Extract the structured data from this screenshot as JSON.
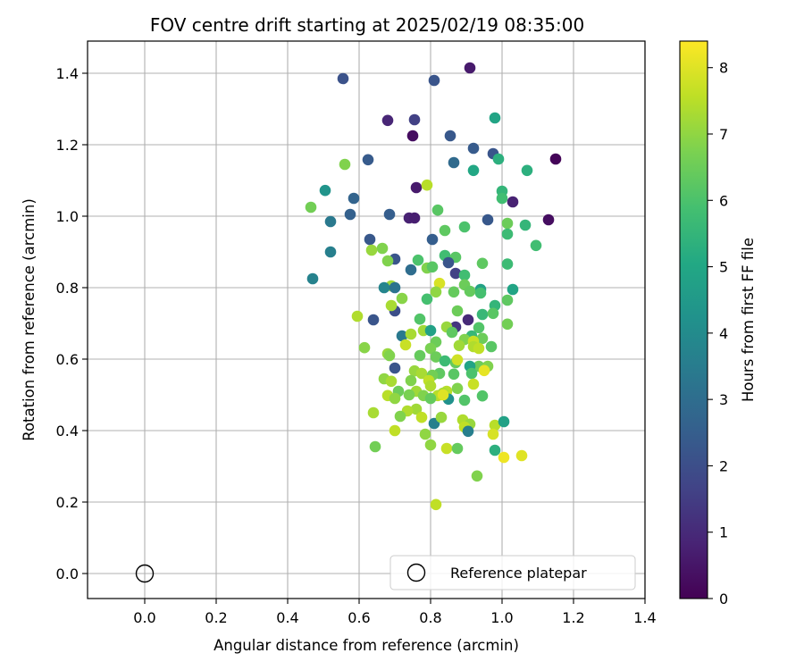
{
  "chart_data": {
    "type": "scatter",
    "title": "FOV centre drift starting at 2025/02/19 08:35:00",
    "xlabel": "Angular distance from reference (arcmin)",
    "ylabel": "Rotation from reference (arcmin)",
    "xlim": [
      -0.16,
      1.4
    ],
    "ylim": [
      -0.07,
      1.49
    ],
    "xticks": [
      "0.0",
      "0.2",
      "0.4",
      "0.6",
      "0.8",
      "1.0",
      "1.2",
      "1.4"
    ],
    "yticks": [
      "0.0",
      "0.2",
      "0.4",
      "0.6",
      "0.8",
      "1.0",
      "1.2",
      "1.4"
    ],
    "grid": true,
    "colormap": "viridis",
    "colorbar": {
      "label": "Hours from first FF file",
      "range": [
        0,
        8.4
      ],
      "ticks": [
        "0",
        "1",
        "2",
        "3",
        "4",
        "5",
        "6",
        "7",
        "8"
      ]
    },
    "legend": {
      "placement": "lower-right",
      "entries": [
        {
          "label": "Reference platepar",
          "marker": "open-circle",
          "x": 0.0,
          "y": 0.0
        }
      ]
    },
    "points": [
      [
        0.91,
        1.415,
        0.6
      ],
      [
        0.555,
        1.385,
        2.1
      ],
      [
        0.81,
        1.38,
        2.2
      ],
      [
        0.68,
        1.268,
        0.9
      ],
      [
        0.755,
        1.27,
        1.6
      ],
      [
        0.98,
        1.275,
        4.9
      ],
      [
        0.75,
        1.225,
        0.3
      ],
      [
        0.855,
        1.225,
        2.3
      ],
      [
        0.92,
        1.19,
        2.4
      ],
      [
        0.975,
        1.175,
        2.2
      ],
      [
        0.625,
        1.158,
        2.4
      ],
      [
        1.15,
        1.16,
        0.1
      ],
      [
        0.865,
        1.15,
        2.9
      ],
      [
        0.99,
        1.16,
        5.3
      ],
      [
        0.56,
        1.145,
        6.8
      ],
      [
        0.92,
        1.128,
        5.0
      ],
      [
        1.07,
        1.128,
        5.3
      ],
      [
        0.76,
        1.08,
        0.6
      ],
      [
        0.79,
        1.087,
        7.5
      ],
      [
        0.505,
        1.072,
        4.3
      ],
      [
        1.0,
        1.07,
        5.5
      ],
      [
        0.585,
        1.05,
        2.7
      ],
      [
        1.03,
        1.04,
        0.8
      ],
      [
        1.0,
        1.05,
        5.8
      ],
      [
        0.465,
        1.025,
        6.6
      ],
      [
        0.82,
        1.017,
        6.2
      ],
      [
        0.575,
        1.005,
        2.6
      ],
      [
        0.685,
        1.005,
        2.5
      ],
      [
        0.74,
        0.995,
        0.8
      ],
      [
        0.755,
        0.995,
        0.7
      ],
      [
        0.96,
        0.99,
        2.3
      ],
      [
        1.13,
        0.99,
        0.3
      ],
      [
        0.52,
        0.985,
        3.4
      ],
      [
        1.015,
        0.98,
        6.5
      ],
      [
        1.065,
        0.975,
        5.5
      ],
      [
        0.895,
        0.97,
        6.0
      ],
      [
        0.84,
        0.96,
        6.3
      ],
      [
        1.015,
        0.95,
        5.7
      ],
      [
        0.63,
        0.935,
        2.3
      ],
      [
        0.805,
        0.935,
        2.5
      ],
      [
        1.095,
        0.918,
        5.8
      ],
      [
        0.665,
        0.91,
        6.8
      ],
      [
        0.635,
        0.905,
        7.1
      ],
      [
        0.52,
        0.9,
        3.6
      ],
      [
        0.84,
        0.89,
        5.8
      ],
      [
        0.87,
        0.885,
        6.2
      ],
      [
        0.7,
        0.88,
        2.2
      ],
      [
        0.68,
        0.875,
        6.8
      ],
      [
        0.765,
        0.877,
        6.0
      ],
      [
        0.85,
        0.87,
        2.2
      ],
      [
        0.945,
        0.868,
        6.3
      ],
      [
        1.015,
        0.866,
        5.7
      ],
      [
        0.745,
        0.85,
        3.0
      ],
      [
        0.79,
        0.855,
        6.8
      ],
      [
        0.805,
        0.858,
        6.2
      ],
      [
        0.87,
        0.84,
        1.6
      ],
      [
        0.895,
        0.835,
        5.8
      ],
      [
        0.47,
        0.825,
        3.7
      ],
      [
        0.825,
        0.812,
        7.9
      ],
      [
        0.69,
        0.805,
        7.2
      ],
      [
        0.67,
        0.8,
        3.8
      ],
      [
        0.7,
        0.8,
        3.2
      ],
      [
        0.895,
        0.808,
        6.5
      ],
      [
        1.03,
        0.795,
        4.9
      ],
      [
        0.94,
        0.795,
        4.8
      ],
      [
        0.865,
        0.788,
        6.4
      ],
      [
        0.815,
        0.788,
        7.0
      ],
      [
        0.91,
        0.79,
        6.4
      ],
      [
        0.94,
        0.785,
        5.9
      ],
      [
        0.72,
        0.77,
        6.9
      ],
      [
        0.79,
        0.768,
        5.9
      ],
      [
        1.015,
        0.765,
        6.3
      ],
      [
        0.98,
        0.75,
        5.5
      ],
      [
        0.7,
        0.735,
        2.0
      ],
      [
        0.69,
        0.75,
        7.3
      ],
      [
        0.595,
        0.72,
        7.4
      ],
      [
        0.875,
        0.735,
        6.5
      ],
      [
        0.945,
        0.725,
        5.6
      ],
      [
        0.975,
        0.728,
        6.2
      ],
      [
        0.64,
        0.71,
        2.2
      ],
      [
        0.905,
        0.71,
        1.0
      ],
      [
        0.77,
        0.712,
        6.1
      ],
      [
        0.87,
        0.69,
        1.3
      ],
      [
        1.015,
        0.698,
        6.6
      ],
      [
        0.935,
        0.688,
        6.1
      ],
      [
        0.845,
        0.69,
        7.1
      ],
      [
        0.78,
        0.68,
        7.2
      ],
      [
        0.8,
        0.68,
        4.8
      ],
      [
        0.72,
        0.665,
        3.4
      ],
      [
        0.86,
        0.675,
        6.3
      ],
      [
        0.745,
        0.67,
        7.3
      ],
      [
        0.915,
        0.665,
        5.6
      ],
      [
        0.895,
        0.655,
        6.8
      ],
      [
        0.945,
        0.658,
        6.5
      ],
      [
        0.92,
        0.65,
        7.7
      ],
      [
        0.815,
        0.648,
        6.5
      ],
      [
        0.73,
        0.64,
        7.7
      ],
      [
        0.88,
        0.638,
        7.2
      ],
      [
        0.92,
        0.635,
        7.4
      ],
      [
        0.97,
        0.635,
        6.2
      ],
      [
        0.935,
        0.63,
        7.6
      ],
      [
        0.615,
        0.632,
        6.9
      ],
      [
        0.8,
        0.63,
        6.7
      ],
      [
        0.68,
        0.615,
        7.1
      ],
      [
        0.685,
        0.61,
        6.8
      ],
      [
        0.77,
        0.61,
        6.4
      ],
      [
        0.815,
        0.606,
        6.5
      ],
      [
        0.87,
        0.59,
        6.4
      ],
      [
        0.84,
        0.595,
        5.7
      ],
      [
        0.875,
        0.598,
        7.8
      ],
      [
        0.935,
        0.58,
        6.5
      ],
      [
        0.96,
        0.58,
        6.8
      ],
      [
        0.91,
        0.58,
        4.9
      ],
      [
        0.825,
        0.56,
        6.3
      ],
      [
        0.7,
        0.575,
        2.2
      ],
      [
        0.755,
        0.567,
        7.1
      ],
      [
        0.775,
        0.56,
        7.3
      ],
      [
        0.805,
        0.555,
        6.6
      ],
      [
        0.865,
        0.558,
        6.2
      ],
      [
        0.915,
        0.56,
        6.0
      ],
      [
        0.95,
        0.568,
        8.1
      ],
      [
        0.67,
        0.545,
        7.0
      ],
      [
        0.69,
        0.538,
        7.3
      ],
      [
        0.745,
        0.54,
        6.8
      ],
      [
        0.795,
        0.54,
        7.6
      ],
      [
        0.8,
        0.525,
        7.4
      ],
      [
        0.76,
        0.51,
        7.2
      ],
      [
        0.845,
        0.51,
        7.5
      ],
      [
        0.875,
        0.518,
        6.8
      ],
      [
        0.92,
        0.53,
        7.7
      ],
      [
        0.71,
        0.51,
        6.5
      ],
      [
        0.68,
        0.498,
        7.5
      ],
      [
        0.7,
        0.49,
        7.0
      ],
      [
        0.74,
        0.5,
        6.7
      ],
      [
        0.78,
        0.498,
        6.8
      ],
      [
        0.82,
        0.498,
        7.5
      ],
      [
        0.835,
        0.505,
        7.3
      ],
      [
        0.85,
        0.488,
        4.2
      ],
      [
        0.8,
        0.49,
        6.4
      ],
      [
        0.835,
        0.5,
        8.0
      ],
      [
        0.945,
        0.497,
        6.1
      ],
      [
        0.895,
        0.485,
        6.1
      ],
      [
        0.64,
        0.45,
        7.3
      ],
      [
        0.76,
        0.46,
        7.2
      ],
      [
        0.735,
        0.455,
        7.4
      ],
      [
        0.775,
        0.437,
        7.6
      ],
      [
        0.715,
        0.44,
        6.8
      ],
      [
        0.81,
        0.42,
        3.6
      ],
      [
        0.83,
        0.437,
        7.1
      ],
      [
        0.89,
        0.43,
        7.4
      ],
      [
        0.91,
        0.418,
        7.1
      ],
      [
        0.98,
        0.415,
        7.5
      ],
      [
        1.005,
        0.425,
        4.8
      ],
      [
        0.895,
        0.41,
        7.6
      ],
      [
        0.905,
        0.398,
        3.6
      ],
      [
        0.7,
        0.4,
        7.6
      ],
      [
        0.785,
        0.39,
        7.0
      ],
      [
        0.975,
        0.39,
        7.9
      ],
      [
        0.8,
        0.36,
        7.0
      ],
      [
        0.645,
        0.355,
        6.6
      ],
      [
        0.845,
        0.35,
        7.7
      ],
      [
        0.875,
        0.35,
        6.4
      ],
      [
        0.98,
        0.345,
        5.3
      ],
      [
        1.005,
        0.325,
        8.2
      ],
      [
        1.055,
        0.33,
        8.0
      ],
      [
        0.93,
        0.273,
        6.8
      ],
      [
        0.815,
        0.193,
        7.6
      ]
    ]
  }
}
